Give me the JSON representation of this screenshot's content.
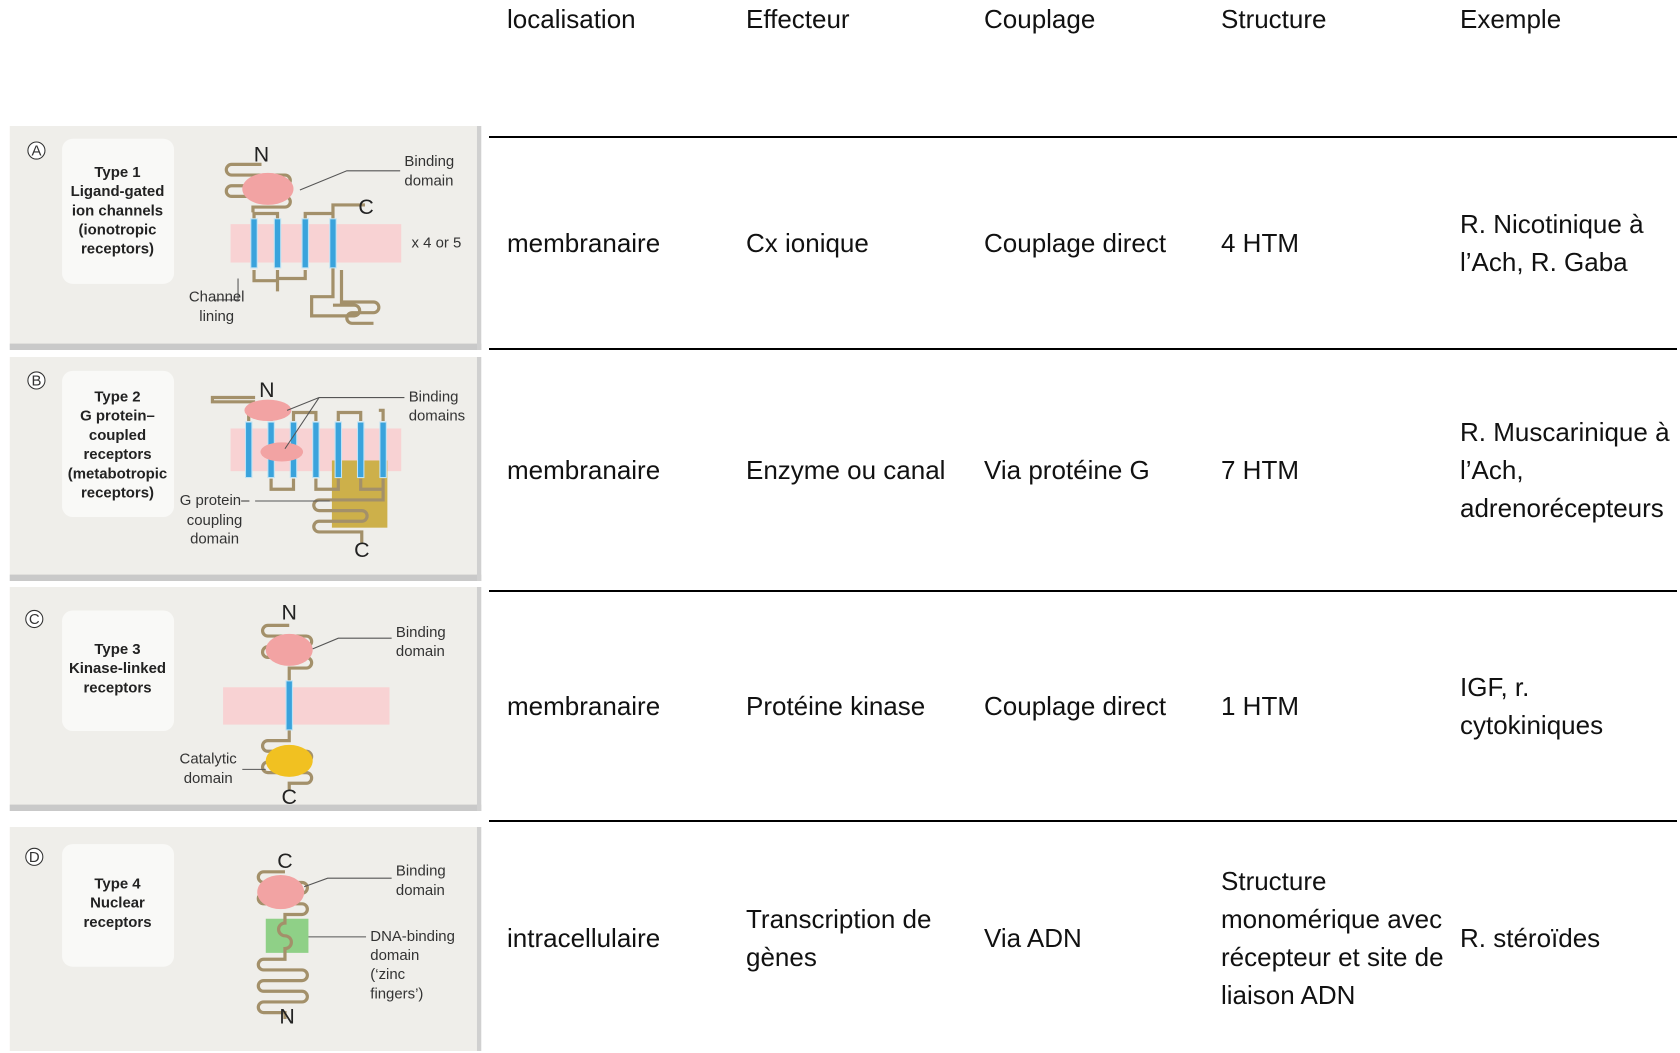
{
  "table": {
    "header": [
      "localisation",
      "Effecteur",
      "Couplage",
      "Structure",
      "Exemple"
    ],
    "rows": [
      [
        "membranaire",
        "Cx ionique",
        "Couplage direct",
        "4 HTM",
        "R. Nicotinique à l’Ach, R. Gaba"
      ],
      [
        "membranaire",
        "Enzyme ou canal",
        "Via protéine G",
        "7 HTM",
        "R. Muscarinique à l’Ach, adrenorécepteurs"
      ],
      [
        "membranaire",
        "Protéine kinase",
        "Couplage direct",
        "1 HTM",
        "IGF, r. cytokiniques"
      ],
      [
        "intracellulaire",
        "Transcription de gènes",
        "Via ADN",
        "Structure monomérique avec récepteur et site de liaison ADN",
        "R. stéroïdes"
      ]
    ]
  },
  "panels": [
    {
      "letter": "A",
      "title": [
        "Type 1",
        "Ligand-gated",
        "ion channels",
        "(ionotropic",
        "receptors)"
      ],
      "top": "N",
      "bottom": "C",
      "labels": [
        [
          "Binding",
          "domain"
        ],
        [
          "Channel",
          "lining"
        ],
        [
          "x 4 or 5"
        ]
      ]
    },
    {
      "letter": "B",
      "title": [
        "Type 2",
        "G protein–",
        "coupled",
        "receptors",
        "(metabotropic",
        "receptors)"
      ],
      "top": "N",
      "bottom": "C",
      "labels": [
        [
          "Binding",
          "domains"
        ],
        [
          "G protein–",
          "coupling",
          "domain"
        ]
      ]
    },
    {
      "letter": "C",
      "title": [
        "Type 3",
        "Kinase-linked",
        "receptors"
      ],
      "top": "N",
      "bottom": "C",
      "labels": [
        [
          "Binding",
          "domain"
        ],
        [
          "Catalytic",
          "domain"
        ]
      ]
    },
    {
      "letter": "D",
      "title": [
        "Type 4",
        "Nuclear",
        "receptors"
      ],
      "top": "C",
      "bottom": "N",
      "labels": [
        [
          "Binding",
          "domain"
        ],
        [
          "DNA-binding",
          "domain",
          "(‘zinc",
          "fingers’)"
        ]
      ]
    }
  ]
}
